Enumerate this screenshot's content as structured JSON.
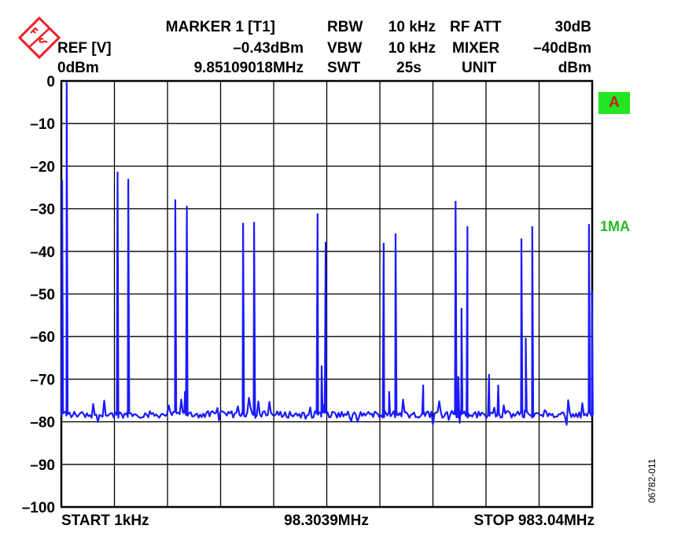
{
  "header": {
    "ref_label": "REF [V]",
    "ref_value": "0dBm",
    "marker_label": "MARKER 1 [T1]",
    "marker_level": "–0.43dBm",
    "marker_freq": "9.85109018MHz",
    "rbw_label": "RBW",
    "rbw_value": "10 kHz",
    "vbw_label": "VBW",
    "vbw_value": "10 kHz",
    "swt_label": "SWT",
    "swt_value": "25s",
    "rfatt_label": "RF ATT",
    "rfatt_value": "30dB",
    "mixer_label": "MIXER",
    "mixer_value": "–40dBm",
    "unit_label": "UNIT",
    "unit_value": "dBm"
  },
  "footer": {
    "start": "START 1kHz",
    "center": "98.3039MHz",
    "stop": "STOP 983.04MHz"
  },
  "badges": {
    "trace_indicator": "A",
    "marker_mode": "1MA"
  },
  "figure_id": "06782-011",
  "colors": {
    "trace": "#1a1aff",
    "badge_bg": "#22e622",
    "badge_text": "#c81e1e",
    "marker_mode": "#22bb22",
    "grid": "#000000"
  },
  "chart_data": {
    "type": "line",
    "x_unit": "MHz",
    "ylim": [
      -100,
      0
    ],
    "y_ticks": [
      "0",
      "–10",
      "–20",
      "–30",
      "–40",
      "–50",
      "–60",
      "–70",
      "–80",
      "–90",
      "–100"
    ],
    "x_divisions": 10,
    "grid": true,
    "noise_floor_dbm": -78,
    "series": [
      {
        "peaks": [
          {
            "x": 1.5,
            "y": -23.5
          },
          {
            "x": 9.85,
            "y": -0.43
          },
          {
            "x": 104.2,
            "y": -21.5
          },
          {
            "x": 124.0,
            "y": -23.2
          },
          {
            "x": 211.0,
            "y": -28.0
          },
          {
            "x": 229.0,
            "y": -73.0
          },
          {
            "x": 232.5,
            "y": -29.5
          },
          {
            "x": 336.5,
            "y": -33.5
          },
          {
            "x": 357.0,
            "y": -33.3
          },
          {
            "x": 474.5,
            "y": -31.3
          },
          {
            "x": 482.0,
            "y": -67.0
          },
          {
            "x": 489.5,
            "y": -38.0
          },
          {
            "x": 597.0,
            "y": -38.2
          },
          {
            "x": 607.0,
            "y": -73.0
          },
          {
            "x": 619.0,
            "y": -36.0
          },
          {
            "x": 670.0,
            "y": -71.5
          },
          {
            "x": 730.0,
            "y": -28.4
          },
          {
            "x": 735.0,
            "y": -69.5
          },
          {
            "x": 741.0,
            "y": -53.5
          },
          {
            "x": 752.0,
            "y": -34.3
          },
          {
            "x": 792.0,
            "y": -69.0
          },
          {
            "x": 809.0,
            "y": -71.5
          },
          {
            "x": 852.0,
            "y": -37.2
          },
          {
            "x": 860.0,
            "y": -60.5
          },
          {
            "x": 872.0,
            "y": -34.3
          },
          {
            "x": 977.0,
            "y": -33.8
          },
          {
            "x": 982.5,
            "y": -49.5
          }
        ]
      }
    ]
  }
}
